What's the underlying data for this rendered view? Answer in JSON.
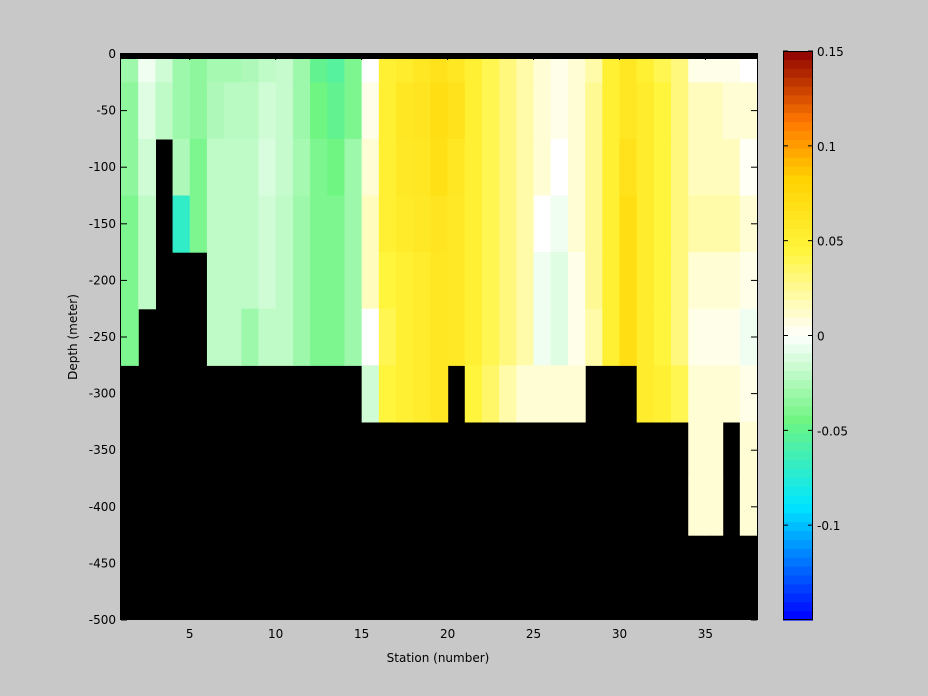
{
  "figure": {
    "background": "#c8c8c8"
  },
  "chart_data": {
    "type": "heatmap",
    "title": "",
    "xlabel": "Station (number)",
    "ylabel": "Depth (meter)",
    "xlim": [
      1,
      38
    ],
    "ylim": [
      -500,
      0
    ],
    "x_ticks": [
      5,
      10,
      15,
      20,
      25,
      30,
      35
    ],
    "y_ticks": [
      0,
      -50,
      -100,
      -150,
      -200,
      -250,
      -300,
      -350,
      -400,
      -450,
      -500
    ],
    "colorbar": {
      "range": [
        -0.15,
        0.15
      ],
      "ticks": [
        0.15,
        0.1,
        0.05,
        0,
        -0.05,
        -0.1
      ],
      "colormap": "jet-white-center",
      "placement": "right"
    },
    "mask_color": "#000000",
    "depth_bins": [
      [
        0,
        -25
      ],
      [
        -25,
        -75
      ],
      [
        -75,
        -125
      ],
      [
        -125,
        -175
      ],
      [
        -175,
        -225
      ],
      [
        -225,
        -275
      ],
      [
        -275,
        -325
      ],
      [
        -325,
        -375
      ],
      [
        -375,
        -425
      ],
      [
        -425,
        -500
      ]
    ],
    "stations": [
      1,
      2,
      3,
      4,
      5,
      6,
      7,
      8,
      9,
      10,
      11,
      12,
      13,
      14,
      15,
      16,
      17,
      18,
      19,
      20,
      21,
      22,
      23,
      24,
      25,
      26,
      27,
      28,
      29,
      30,
      31,
      32,
      33,
      34,
      35,
      36,
      37
    ],
    "bottom_depth": [
      -250,
      -200,
      -75,
      -150,
      -150,
      -250,
      -250,
      -250,
      -250,
      -250,
      -250,
      -250,
      -250,
      -250,
      -300,
      -300,
      -300,
      -300,
      -300,
      -250,
      -300,
      -300,
      -300,
      -300,
      -300,
      -300,
      -300,
      -250,
      -250,
      -250,
      -300,
      -300,
      -300,
      -400,
      -400,
      -300,
      -400
    ],
    "values": [
      [
        -0.03,
        -0.005,
        -0.015,
        -0.03,
        -0.035,
        -0.028,
        -0.028,
        -0.025,
        -0.02,
        -0.018,
        -0.03,
        -0.05,
        -0.055,
        -0.04,
        0.0,
        0.05,
        0.055,
        0.06,
        0.065,
        0.06,
        0.05,
        0.04,
        0.03,
        0.02,
        0.01,
        0.005,
        0.01,
        0.02,
        0.05,
        0.06,
        0.05,
        0.04,
        0.03,
        0.005,
        0.005,
        0.005,
        0.0
      ],
      [
        -0.035,
        -0.01,
        -0.02,
        -0.03,
        -0.035,
        -0.025,
        -0.022,
        -0.022,
        -0.015,
        -0.018,
        -0.03,
        -0.045,
        -0.05,
        -0.04,
        0.005,
        0.05,
        0.06,
        0.062,
        0.07,
        0.065,
        0.05,
        0.04,
        0.03,
        0.02,
        0.01,
        0.005,
        0.01,
        0.025,
        0.05,
        0.06,
        0.055,
        0.045,
        0.03,
        0.015,
        0.015,
        0.01,
        0.01
      ],
      [
        -0.035,
        -0.015,
        null,
        -0.025,
        -0.04,
        -0.02,
        -0.02,
        -0.02,
        -0.012,
        -0.018,
        -0.028,
        -0.04,
        -0.045,
        -0.03,
        0.01,
        0.05,
        0.058,
        0.06,
        0.068,
        0.06,
        0.05,
        0.04,
        0.03,
        0.02,
        0.01,
        0.0,
        0.01,
        0.025,
        0.05,
        0.065,
        0.055,
        0.045,
        0.03,
        0.015,
        0.015,
        0.015,
        0.002
      ],
      [
        -0.04,
        -0.02,
        null,
        -0.07,
        -0.04,
        -0.02,
        -0.02,
        -0.02,
        -0.015,
        -0.02,
        -0.03,
        -0.04,
        -0.04,
        -0.03,
        0.015,
        0.05,
        0.056,
        0.058,
        0.062,
        0.058,
        0.05,
        0.04,
        0.03,
        0.02,
        0.0,
        -0.005,
        0.01,
        0.025,
        0.05,
        0.07,
        0.055,
        0.045,
        0.03,
        0.02,
        0.02,
        0.02,
        0.01
      ],
      [
        -0.04,
        -0.02,
        null,
        null,
        null,
        -0.02,
        -0.02,
        -0.02,
        -0.015,
        -0.02,
        -0.03,
        -0.04,
        -0.04,
        -0.03,
        0.015,
        0.045,
        0.05,
        0.055,
        0.06,
        0.058,
        0.05,
        0.04,
        0.03,
        0.02,
        -0.005,
        -0.01,
        0.005,
        0.025,
        0.05,
        0.07,
        0.055,
        0.045,
        0.03,
        0.01,
        0.01,
        0.01,
        0.005
      ],
      [
        -0.04,
        null,
        null,
        null,
        null,
        -0.02,
        -0.02,
        -0.03,
        -0.02,
        -0.02,
        -0.03,
        -0.04,
        -0.04,
        -0.03,
        0.0,
        0.04,
        0.05,
        0.055,
        0.06,
        0.058,
        0.05,
        0.04,
        0.03,
        0.02,
        -0.005,
        -0.01,
        0.005,
        0.02,
        0.05,
        0.07,
        0.055,
        0.045,
        0.03,
        0.005,
        0.005,
        0.005,
        -0.005
      ],
      [
        null,
        null,
        null,
        null,
        null,
        null,
        null,
        null,
        null,
        null,
        null,
        null,
        null,
        null,
        -0.015,
        0.045,
        0.05,
        0.055,
        0.06,
        null,
        0.045,
        0.035,
        0.02,
        0.01,
        0.01,
        0.01,
        0.01,
        null,
        null,
        null,
        0.055,
        0.05,
        0.04,
        0.01,
        0.01,
        0.01,
        0.005
      ],
      [
        null,
        null,
        null,
        null,
        null,
        null,
        null,
        null,
        null,
        null,
        null,
        null,
        null,
        null,
        null,
        null,
        null,
        null,
        null,
        null,
        null,
        null,
        null,
        null,
        null,
        null,
        null,
        null,
        null,
        null,
        null,
        null,
        null,
        0.01,
        0.01,
        null,
        0.01
      ],
      [
        null,
        null,
        null,
        null,
        null,
        null,
        null,
        null,
        null,
        null,
        null,
        null,
        null,
        null,
        null,
        null,
        null,
        null,
        null,
        null,
        null,
        null,
        null,
        null,
        null,
        null,
        null,
        null,
        null,
        null,
        null,
        null,
        null,
        0.01,
        0.01,
        null,
        0.01
      ],
      [
        null,
        null,
        null,
        null,
        null,
        null,
        null,
        null,
        null,
        null,
        null,
        null,
        null,
        null,
        null,
        null,
        null,
        null,
        null,
        null,
        null,
        null,
        null,
        null,
        null,
        null,
        null,
        null,
        null,
        null,
        null,
        null,
        null,
        null,
        null,
        null,
        null
      ]
    ]
  }
}
